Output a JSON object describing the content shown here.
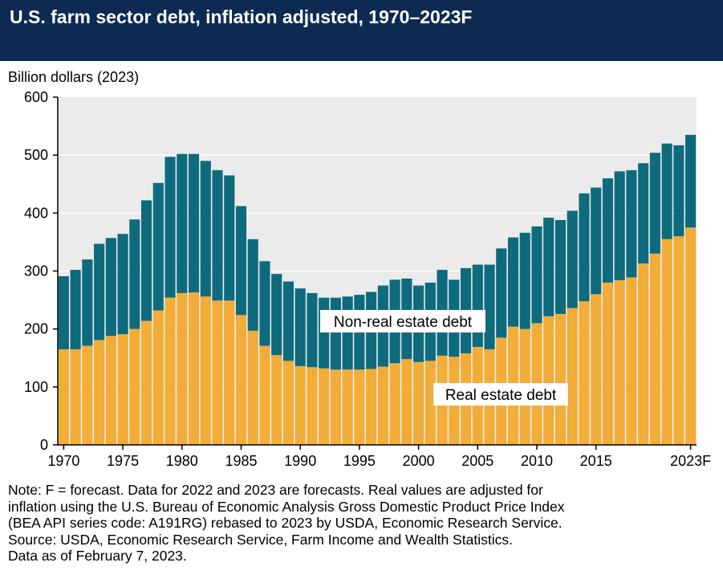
{
  "chart_data": {
    "type": "bar",
    "stacked": true,
    "title": "U.S. farm sector debt, inflation adjusted, 1970–2023F",
    "ylabel": "Billion dollars (2023)",
    "xlabel": "",
    "ylim": [
      0,
      600
    ],
    "yticks": [
      0,
      100,
      200,
      300,
      400,
      500,
      600
    ],
    "grid": true,
    "categories": [
      1970,
      1971,
      1972,
      1973,
      1974,
      1975,
      1976,
      1977,
      1978,
      1979,
      1980,
      1981,
      1982,
      1983,
      1984,
      1985,
      1986,
      1987,
      1988,
      1989,
      1990,
      1991,
      1992,
      1993,
      1994,
      1995,
      1996,
      1997,
      1998,
      1999,
      2000,
      2001,
      2002,
      2003,
      2004,
      2005,
      2006,
      2007,
      2008,
      2009,
      2010,
      2011,
      2012,
      2013,
      2014,
      2015,
      2016,
      2017,
      2018,
      2019,
      2020,
      2021,
      2022,
      2023
    ],
    "xtick_labels": [
      {
        "year": 1970,
        "label": "1970"
      },
      {
        "year": 1975,
        "label": "1975"
      },
      {
        "year": 1980,
        "label": "1980"
      },
      {
        "year": 1985,
        "label": "1985"
      },
      {
        "year": 1990,
        "label": "1990"
      },
      {
        "year": 1995,
        "label": "1995"
      },
      {
        "year": 2000,
        "label": "2000"
      },
      {
        "year": 2005,
        "label": "2005"
      },
      {
        "year": 2010,
        "label": "2010"
      },
      {
        "year": 2015,
        "label": "2015"
      },
      {
        "year": 2023,
        "label": "2023F"
      }
    ],
    "series": [
      {
        "name": "Real estate debt",
        "color": "#f2ac38",
        "values": [
          165,
          165,
          171,
          181,
          188,
          191,
          200,
          214,
          232,
          254,
          262,
          263,
          256,
          249,
          249,
          224,
          197,
          171,
          155,
          145,
          136,
          134,
          132,
          130,
          130,
          130,
          131,
          135,
          141,
          148,
          143,
          145,
          154,
          152,
          158,
          169,
          165,
          185,
          204,
          200,
          210,
          222,
          226,
          236,
          248,
          260,
          280,
          284,
          289,
          313,
          330,
          355,
          360,
          375
        ]
      },
      {
        "name": "Non-real estate debt",
        "color": "#0e6b7d",
        "values": [
          126,
          137,
          149,
          166,
          169,
          173,
          189,
          208,
          220,
          243,
          240,
          239,
          234,
          225,
          216,
          188,
          158,
          146,
          140,
          137,
          134,
          128,
          122,
          124,
          126,
          129,
          133,
          140,
          144,
          139,
          132,
          135,
          148,
          133,
          147,
          142,
          146,
          154,
          154,
          166,
          167,
          170,
          162,
          168,
          186,
          184,
          180,
          188,
          185,
          173,
          174,
          165,
          157,
          160
        ]
      }
    ]
  },
  "notes": [
    "Note: F = forecast. Data for 2022 and 2023 are forecasts. Real values are adjusted for",
    "inflation using the U.S. Bureau of Economic Analysis Gross Domestic Product Price Index",
    "(BEA API series code: A191RG) rebased to 2023 by USDA, Economic Research Service.",
    "Source: USDA, Economic Research Service, Farm Income and Wealth Statistics.",
    "Data as of February 7, 2023."
  ]
}
